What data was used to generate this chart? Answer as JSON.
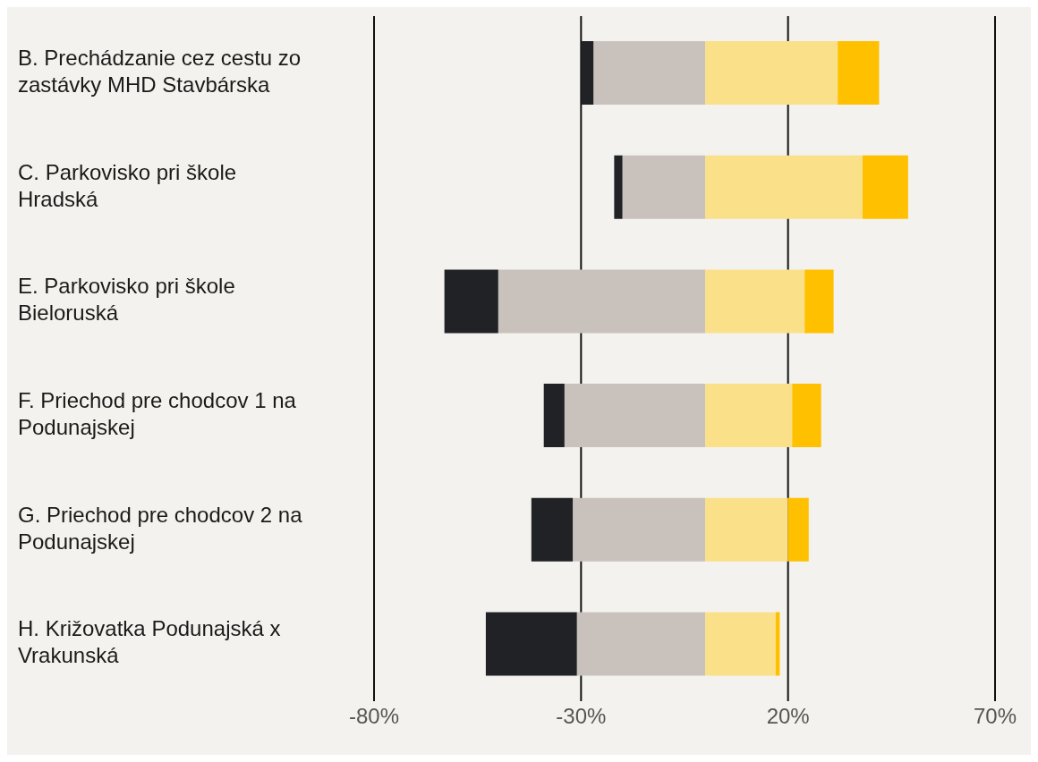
{
  "chart_data": {
    "type": "bar",
    "orientation": "horizontal",
    "stacked": true,
    "categories": [
      "B. Prechádzanie cez cestu zo zastávky MHD Stavbárska",
      "C. Parkovisko pri škole Hradská",
      "E. Parkovisko pri škole Bieloruská",
      "F. Priechod pre chodcov 1 na Podunajskej",
      "G. Priechod pre chodcov 2 na Podunajskej",
      "H. Križovatka Podunajská x Vrakunská"
    ],
    "series": [
      {
        "color": "#c9c2bc",
        "values": [
          -27,
          -20,
          -50,
          -34,
          -32,
          -31
        ]
      },
      {
        "color": "#212226",
        "values": [
          -3,
          -2,
          -13,
          -5,
          -10,
          -22
        ]
      },
      {
        "color": "#fbe08a",
        "values": [
          32,
          38,
          24,
          21,
          20,
          17
        ]
      },
      {
        "color": "#ffc000",
        "values": [
          10,
          11,
          7,
          7,
          5,
          1
        ]
      }
    ],
    "xlim": [
      -80,
      70
    ],
    "xticks": [
      {
        "value": -80,
        "label": "-80%"
      },
      {
        "value": -30,
        "label": "-30%"
      },
      {
        "value": 20,
        "label": "20%"
      },
      {
        "value": 70,
        "label": "70%"
      }
    ],
    "grid": "x"
  }
}
